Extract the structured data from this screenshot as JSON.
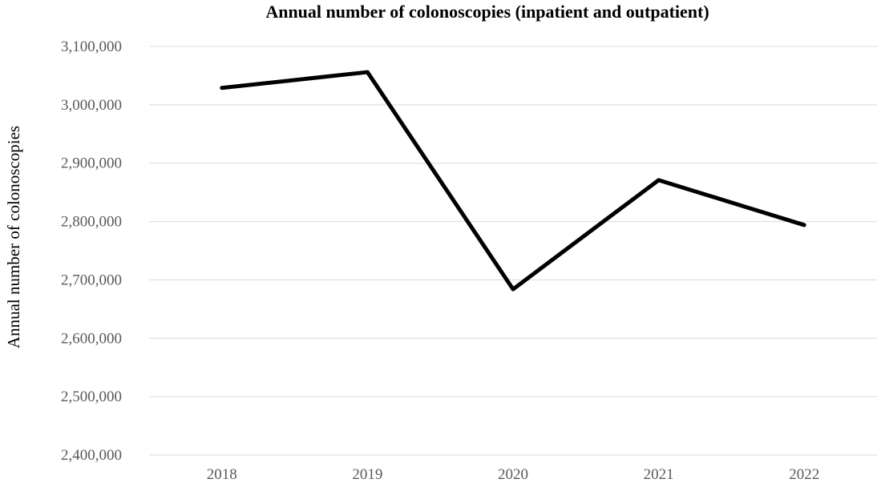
{
  "chart_data": {
    "type": "line",
    "title": "Annual number of colonoscopies (inpatient and outpatient)",
    "xlabel": "",
    "ylabel": "Annual number of colonoscopies",
    "categories": [
      "2018",
      "2019",
      "2020",
      "2021",
      "2022"
    ],
    "series": [
      {
        "values": [
          3029000,
          3056000,
          2684000,
          2871000,
          2794000
        ]
      }
    ],
    "ylim": [
      2400000,
      3100000
    ],
    "y_ticks": [
      "2,400,000",
      "2,500,000",
      "2,600,000",
      "2,700,000",
      "2,800,000",
      "2,900,000",
      "3,000,000",
      "3,100,000"
    ],
    "grid": "horizontal",
    "legend": "none",
    "colors": {
      "line": "#000000",
      "grid": "#d9d9d9",
      "tick_text": "#595959"
    }
  }
}
